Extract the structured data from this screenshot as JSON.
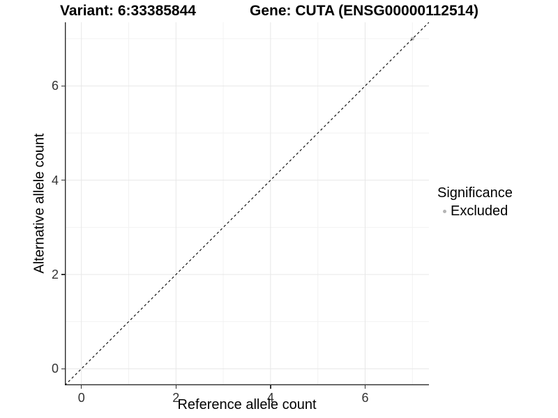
{
  "chart_data": {
    "type": "scatter",
    "titles": {
      "variant": "Variant: 6:33385844",
      "gene": "Gene: CUTA (ENSG00000112514)"
    },
    "xlabel": "Reference allele count",
    "ylabel": "Alternative allele count",
    "x_ticks": [
      0,
      2,
      4,
      6
    ],
    "y_ticks": [
      0,
      2,
      4,
      6
    ],
    "x_minor": [
      1,
      3,
      5,
      7
    ],
    "y_minor": [
      1,
      3,
      5,
      7
    ],
    "xlim": [
      -0.35,
      7.35
    ],
    "ylim": [
      -0.35,
      7.35
    ],
    "grid": true,
    "reference_line": {
      "type": "identity",
      "slope": 1,
      "intercept": 0,
      "style": "dashed",
      "color": "#000000"
    },
    "points": [
      {
        "x": 7,
        "y": 7,
        "significance": "Excluded",
        "color": "#b5b5b5"
      }
    ],
    "legend": {
      "position": "right",
      "title": "Significance",
      "items": [
        {
          "label": "Excluded",
          "color": "#b5b5b5",
          "marker": "circle"
        }
      ]
    },
    "colors": {
      "grid_major": "#e7e7e7",
      "grid_minor": "#f2f2f2",
      "axis_line": "#2b2b2b",
      "tick_mark": "#333333",
      "tick_label": "#333333",
      "point": "#b5b5b5"
    }
  }
}
